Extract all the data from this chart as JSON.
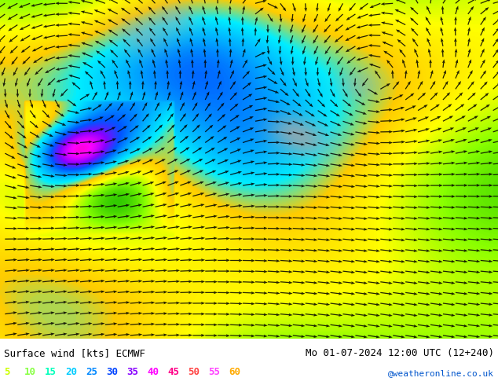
{
  "title_left": "Surface wind [kts] ECMWF",
  "title_right": "Mo 01-07-2024 12:00 UTC (12+240)",
  "credit": "@weatheronline.co.uk",
  "legend_values": [
    5,
    10,
    15,
    20,
    25,
    30,
    35,
    40,
    45,
    50,
    55,
    60
  ],
  "legend_colors": [
    "#bbff00",
    "#88ff00",
    "#00ff88",
    "#00ffcc",
    "#00ccff",
    "#0088ff",
    "#8800ff",
    "#ff00ff",
    "#ff0088",
    "#ff4444",
    "#ff8800",
    "#ffff00"
  ],
  "colormap_colors": [
    "#00cc00",
    "#44ff00",
    "#aaff00",
    "#ffff00",
    "#ffcc00",
    "#00ffff",
    "#00ccff",
    "#0088ff",
    "#8844ff",
    "#cc00ff",
    "#ff00aa",
    "#ff4444",
    "#ff8800"
  ],
  "colormap_bounds": [
    0,
    5,
    10,
    15,
    20,
    25,
    30,
    35,
    40,
    45,
    50,
    55,
    60,
    70
  ],
  "bg_color": "#ffffff",
  "map_bg": "#33bb33",
  "fig_width": 6.34,
  "fig_height": 4.9,
  "dpi": 100
}
